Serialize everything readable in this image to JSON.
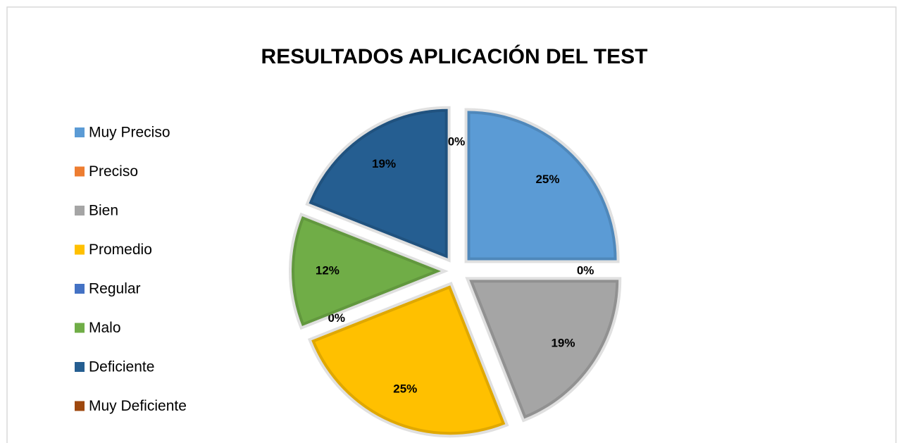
{
  "chart_data": {
    "type": "pie",
    "title": "RESULTADOS APLICACIÓN DEL TEST",
    "categories": [
      "Muy Preciso",
      "Preciso",
      "Bien",
      "Promedio",
      "Regular",
      "Malo",
      "Deficiente",
      "Muy Deficiente"
    ],
    "values": [
      25,
      0,
      19,
      25,
      0,
      12,
      19,
      0
    ],
    "value_labels": [
      "25%",
      "0%",
      "19%",
      "25%",
      "0%",
      "12%",
      "19%",
      "0%"
    ],
    "colors": [
      "#5b9bd5",
      "#ed7d31",
      "#a5a5a5",
      "#ffc000",
      "#4472c4",
      "#70ad47",
      "#255e91",
      "#9e480e"
    ],
    "legend": "left"
  }
}
